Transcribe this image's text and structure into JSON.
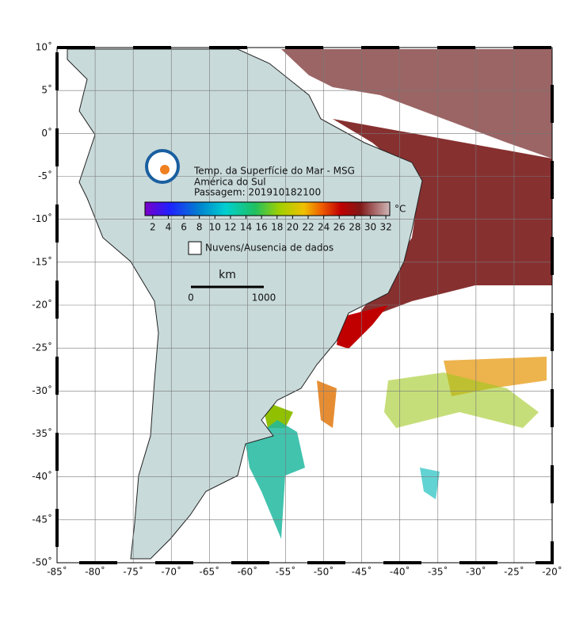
{
  "map": {
    "lonlim": [
      -85,
      -20
    ],
    "latlim": [
      -50,
      10
    ],
    "lon_ticks": [
      {
        "value": -85,
        "label": "-85˚"
      },
      {
        "value": -80,
        "label": "-80˚"
      },
      {
        "value": -75,
        "label": "-75˚"
      },
      {
        "value": -70,
        "label": "-70˚"
      },
      {
        "value": -65,
        "label": "-65˚"
      },
      {
        "value": -60,
        "label": "-60˚"
      },
      {
        "value": -55,
        "label": "-55˚"
      },
      {
        "value": -50,
        "label": "-50˚"
      },
      {
        "value": -45,
        "label": "-45˚"
      },
      {
        "value": -40,
        "label": "-40˚"
      },
      {
        "value": -35,
        "label": "-35˚"
      },
      {
        "value": -30,
        "label": "-30˚"
      },
      {
        "value": -25,
        "label": "-25˚"
      },
      {
        "value": -20,
        "label": "-20˚"
      }
    ],
    "lat_ticks": [
      {
        "value": 10,
        "label": "10˚"
      },
      {
        "value": 5,
        "label": "5˚"
      },
      {
        "value": 0,
        "label": "0˚"
      },
      {
        "value": -5,
        "label": "-5˚"
      },
      {
        "value": -10,
        "label": "-10˚"
      },
      {
        "value": -15,
        "label": "-15˚"
      },
      {
        "value": -20,
        "label": "-20˚"
      },
      {
        "value": -25,
        "label": "-25˚"
      },
      {
        "value": -30,
        "label": "-30˚"
      },
      {
        "value": -35,
        "label": "-35˚"
      },
      {
        "value": -40,
        "label": "-40˚"
      },
      {
        "value": -45,
        "label": "-45˚"
      },
      {
        "value": -50,
        "label": "-50˚"
      }
    ],
    "title": {
      "line1": "Temp. da Superfície do Mar - MSG",
      "line2": "América do Sul",
      "line3": "Passagem: 201910182100"
    },
    "colorbar": {
      "range": [
        1,
        32.5
      ],
      "ticks": [
        2,
        4,
        6,
        8,
        10,
        12,
        14,
        16,
        18,
        20,
        22,
        24,
        26,
        28,
        30,
        32
      ],
      "unit": "°C"
    },
    "legend": {
      "label": "Nuvens/Ausencia de dados"
    },
    "scale_bar": {
      "unit": "km",
      "start": "0",
      "end": "1000"
    }
  }
}
